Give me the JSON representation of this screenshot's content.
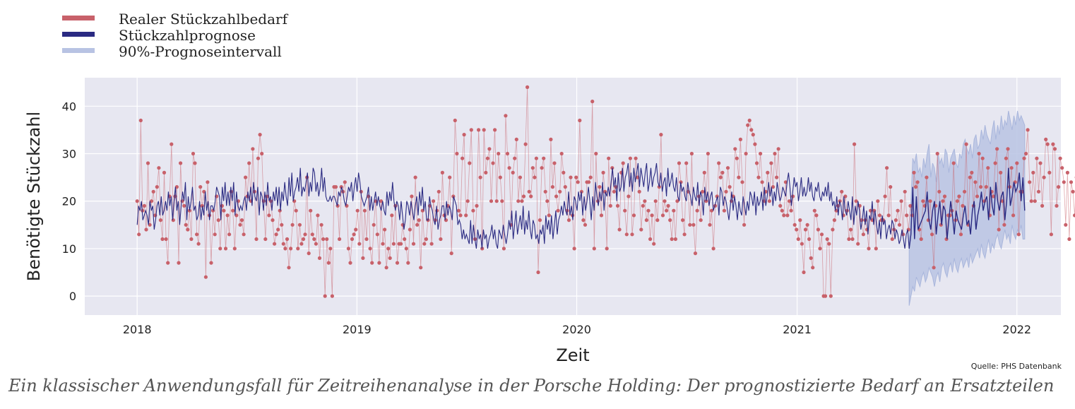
{
  "caption": "Ein klassischer Anwendungsfall für Zeitreihenanalyse in der Porsche Holding: Der prognostizierte Bedarf an Ersatzteilen",
  "source": "Quelle: PHS Datenbank",
  "colors": {
    "actual": "#c8616a",
    "forecast": "#2a2a82",
    "interval": "#b8c3e3",
    "plot_background": "#e7e7f1",
    "grid": "#ffffff"
  },
  "chart_data": {
    "type": "line",
    "title": "",
    "xlabel": "Zeit",
    "ylabel": "Benötigte Stückzahl",
    "x_range": [
      "2017-10-06",
      "2022-03-15"
    ],
    "ylim": [
      -4,
      46
    ],
    "x_ticks": [
      "2018",
      "2019",
      "2020",
      "2021",
      "2022"
    ],
    "y_ticks": [
      0,
      10,
      20,
      30,
      40
    ],
    "grid": true,
    "legend_position": "top-left",
    "legend": [
      {
        "label": "Realer Stückzahlbedarf",
        "series": "actual"
      },
      {
        "label": "Stückzahlprognose",
        "series": "forecast"
      },
      {
        "label": "90%-Prognoseintervall",
        "series": "interval"
      }
    ],
    "actual_period": {
      "start": "2018-01-01",
      "end": "2021-07-06",
      "step_days": 3
    },
    "forecast_period": {
      "start": "2021-07-06",
      "end": "2021-12-31",
      "step_days": 3
    },
    "actual_values": [
      20,
      13,
      37,
      18,
      19,
      14,
      28,
      15,
      20,
      22,
      17,
      23,
      27,
      16,
      12,
      26,
      12,
      7,
      21,
      32,
      16,
      21,
      23,
      7,
      28,
      20,
      19,
      15,
      14,
      18,
      12,
      30,
      28,
      13,
      11,
      23,
      19,
      22,
      4,
      24,
      17,
      7,
      18,
      13,
      21,
      16,
      10,
      19,
      18,
      10,
      17,
      13,
      22,
      18,
      10,
      17,
      20,
      15,
      16,
      13,
      25,
      21,
      28,
      20,
      31,
      22,
      12,
      29,
      34,
      30,
      20,
      12,
      21,
      17,
      20,
      16,
      11,
      13,
      14,
      18,
      15,
      11,
      10,
      12,
      6,
      10,
      15,
      20,
      18,
      10,
      15,
      11,
      12,
      13,
      25,
      9,
      18,
      13,
      12,
      11,
      17,
      8,
      15,
      12,
      0,
      12,
      7,
      10,
      0,
      23,
      23,
      19,
      12,
      23,
      22,
      24,
      19,
      10,
      7,
      12,
      13,
      14,
      18,
      11,
      22,
      8,
      18,
      12,
      21,
      10,
      7,
      15,
      20,
      13,
      7,
      20,
      11,
      14,
      6,
      10,
      8,
      17,
      11,
      19,
      7,
      11,
      11,
      15,
      12,
      10,
      7,
      14,
      21,
      11,
      25,
      15,
      16,
      6,
      18,
      11,
      12,
      16,
      19,
      11,
      20,
      16,
      18,
      22,
      12,
      26,
      17,
      16,
      19,
      25,
      9,
      21,
      37,
      30,
      18,
      17,
      29,
      34,
      17,
      20,
      28,
      35,
      18,
      12,
      19,
      35,
      25,
      10,
      35,
      26,
      29,
      31,
      20,
      28,
      35,
      20,
      30,
      25,
      20,
      10,
      38,
      30,
      27,
      15,
      26,
      29,
      33,
      20,
      25,
      20,
      21,
      32,
      44,
      22,
      21,
      27,
      25,
      29,
      5,
      16,
      27,
      29,
      22,
      20,
      17,
      33,
      23,
      28,
      21,
      18,
      22,
      30,
      26,
      23,
      18,
      16,
      25,
      17,
      10,
      25,
      24,
      37,
      22,
      16,
      15,
      24,
      24,
      25,
      41,
      10,
      30,
      20,
      23,
      17,
      26,
      22,
      10,
      29,
      19,
      27,
      22,
      23,
      19,
      14,
      26,
      28,
      18,
      13,
      21,
      29,
      13,
      17,
      29,
      25,
      22,
      14,
      19,
      20,
      16,
      18,
      12,
      17,
      11,
      20,
      16,
      23,
      34,
      17,
      20,
      18,
      19,
      16,
      12,
      18,
      12,
      20,
      28,
      24,
      16,
      13,
      28,
      22,
      15,
      30,
      15,
      9,
      18,
      21,
      16,
      22,
      26,
      20,
      30,
      15,
      18,
      10,
      19,
      21,
      28,
      25,
      26,
      18,
      22,
      27,
      23,
      20,
      21,
      31,
      29,
      25,
      33,
      24,
      15,
      30,
      36,
      37,
      35,
      34,
      32,
      28,
      25,
      30,
      24,
      20,
      22,
      26,
      20,
      28,
      23,
      30,
      25,
      31,
      19,
      18,
      17,
      24,
      17,
      20,
      18,
      21,
      15,
      14,
      12,
      16,
      11,
      5,
      14,
      15,
      12,
      8,
      6,
      18,
      17,
      14,
      10,
      13,
      0,
      0,
      12,
      11,
      0,
      14,
      16,
      18,
      19,
      20,
      22,
      17,
      21,
      18,
      12,
      14,
      12,
      32,
      20,
      11,
      19,
      16,
      13,
      16,
      14,
      10,
      18,
      16,
      18,
      10,
      20,
      17,
      16,
      16,
      21,
      27,
      17,
      23,
      12,
      14,
      16,
      18,
      15,
      20,
      13,
      22,
      17,
      14,
      19,
      17,
      26,
      23,
      24,
      14,
      12,
      20,
      19,
      25,
      16,
      20,
      13,
      6,
      19,
      30,
      22,
      15,
      20,
      21,
      12,
      17,
      17,
      18,
      28,
      16,
      20,
      21,
      13,
      19,
      22,
      32,
      15,
      25,
      26,
      19,
      24,
      21,
      30,
      23,
      29,
      20,
      23,
      27,
      17,
      22,
      21,
      28,
      31,
      14,
      26,
      20,
      15,
      29,
      31,
      23,
      27,
      17,
      24,
      28,
      13,
      22,
      22,
      29,
      30,
      35,
      24,
      20,
      26,
      20,
      29,
      22,
      28,
      19,
      25,
      33,
      32,
      26,
      13,
      32,
      31,
      19,
      23,
      29,
      27,
      24,
      15,
      26,
      12,
      24,
      22,
      17,
      25,
      27,
      22,
      18,
      23,
      21,
      26,
      18,
      26,
      27,
      13,
      19,
      25,
      22,
      19,
      15,
      16,
      12,
      20,
      35,
      30,
      25,
      27,
      18,
      20,
      14,
      12,
      22,
      13,
      10,
      11,
      18,
      20,
      23,
      22,
      15,
      20,
      30,
      24,
      28,
      19,
      13,
      14,
      13,
      21,
      12,
      17,
      24,
      15,
      11,
      24,
      18,
      19,
      22,
      20,
      26,
      21,
      14,
      12,
      21,
      10,
      15,
      15,
      20,
      16,
      22,
      22,
      17,
      22,
      25,
      11,
      21,
      10,
      9,
      24,
      18,
      14,
      15,
      8,
      22,
      19,
      20,
      16,
      12,
      13,
      10,
      15,
      23,
      18,
      15,
      20,
      10,
      11,
      19,
      15,
      22,
      15,
      20,
      28,
      16,
      13,
      20,
      20,
      33,
      12,
      13,
      35,
      24,
      13,
      11,
      17,
      18,
      7,
      19,
      20,
      15,
      15,
      27,
      30,
      16,
      22,
      14,
      13,
      20,
      24,
      17,
      21,
      17,
      24,
      28,
      19,
      22,
      11,
      23,
      25,
      14,
      19,
      17,
      16,
      23,
      26,
      20,
      24,
      14,
      28,
      28,
      21,
      26,
      13,
      26,
      23,
      20,
      29,
      17,
      20,
      21,
      30,
      19,
      22,
      18,
      20,
      24,
      13,
      19,
      26,
      17,
      20,
      14,
      22,
      16,
      12,
      12,
      13,
      18,
      22,
      20,
      14,
      15,
      13,
      16,
      11,
      10,
      12,
      15,
      13,
      16,
      15,
      12,
      15,
      13,
      14,
      15,
      12,
      15,
      13,
      10,
      11,
      12,
      14,
      15,
      10,
      15,
      16,
      7,
      15,
      0,
      9,
      3,
      0,
      5,
      31,
      13
    ],
    "forecast_values": [
      15,
      19,
      18,
      20,
      16,
      17,
      18,
      17,
      15,
      20,
      18,
      19,
      14,
      16,
      19,
      20,
      17,
      21,
      17,
      18,
      20,
      18,
      22,
      19,
      21,
      16,
      20,
      23,
      18,
      20,
      15,
      19,
      22,
      20,
      24,
      16,
      21,
      18,
      20,
      23,
      18,
      19,
      16,
      17,
      20,
      16,
      19,
      17,
      22,
      18,
      20,
      16,
      19,
      19,
      18,
      20,
      23,
      22,
      21,
      16,
      23,
      20,
      24,
      19,
      22,
      19,
      23,
      20,
      24,
      17,
      22,
      19,
      18,
      19,
      18,
      20,
      21,
      18,
      22,
      20,
      23,
      19,
      24,
      21,
      20,
      23,
      17,
      22,
      21,
      18,
      22,
      19,
      24,
      20,
      21,
      18,
      22,
      20,
      23,
      19,
      23,
      18,
      22,
      20,
      24,
      21,
      19,
      25,
      21,
      26,
      20,
      22,
      23,
      25,
      22,
      27,
      21,
      23,
      22,
      24,
      26,
      21,
      24,
      22,
      27,
      26,
      22,
      24,
      21,
      23,
      27,
      22,
      25,
      21,
      20,
      20,
      21,
      20,
      21,
      21,
      20,
      19,
      22,
      21,
      23,
      22,
      20,
      19,
      21,
      23,
      22,
      24,
      20,
      23,
      25,
      22,
      26,
      24,
      21,
      20,
      19,
      20,
      21,
      23,
      18,
      21,
      18,
      20,
      22,
      19,
      21,
      19,
      18,
      20,
      18,
      17,
      22,
      19,
      22,
      20,
      24,
      20,
      18,
      20,
      19,
      16,
      20,
      17,
      14,
      16,
      20,
      19,
      17,
      20,
      18,
      16,
      19,
      21,
      17,
      22,
      19,
      23,
      18,
      20,
      16,
      16,
      21,
      19,
      18,
      16,
      15,
      19,
      14,
      16,
      17,
      19,
      19,
      16,
      20,
      17,
      19,
      18,
      16,
      21,
      20,
      19,
      15,
      16,
      15,
      12,
      14,
      12,
      13,
      12,
      11,
      16,
      11,
      15,
      12,
      10,
      14,
      12,
      13,
      10,
      14,
      12,
      13,
      10,
      12,
      13,
      15,
      12,
      14,
      11,
      10,
      14,
      13,
      12,
      15,
      13,
      11,
      13,
      16,
      14,
      18,
      12,
      15,
      18,
      13,
      15,
      17,
      14,
      19,
      13,
      16,
      14,
      18,
      14,
      12,
      16,
      15,
      12,
      13,
      11,
      14,
      13,
      15,
      11,
      17,
      14,
      16,
      13,
      17,
      12,
      15,
      18,
      13,
      16,
      17,
      19,
      17,
      20,
      18,
      17,
      22,
      17,
      19,
      16,
      21,
      20,
      18,
      22,
      20,
      22,
      17,
      21,
      18,
      20,
      23,
      20,
      16,
      21,
      18,
      24,
      21,
      19,
      22,
      20,
      24,
      18,
      22,
      21,
      23,
      21,
      24,
      27,
      23,
      25,
      20,
      26,
      22,
      23,
      27,
      22,
      25,
      26,
      28,
      23,
      26,
      22,
      27,
      24,
      26,
      28,
      23,
      27,
      25,
      23,
      26,
      28,
      22,
      24,
      27,
      23,
      25,
      26,
      28,
      24,
      23,
      26,
      22,
      24,
      25,
      21,
      27,
      23,
      24,
      26,
      23,
      22,
      25,
      21,
      20,
      24,
      22,
      23,
      21,
      20,
      24,
      22,
      21,
      19,
      23,
      21,
      20,
      24,
      19,
      22,
      21,
      17,
      23,
      20,
      22,
      19,
      21,
      22,
      18,
      19,
      20,
      21,
      17,
      23,
      22,
      19,
      21,
      20,
      18,
      16,
      19,
      22,
      18,
      21,
      19,
      16,
      20,
      18,
      17,
      21,
      19,
      17,
      20,
      18,
      22,
      21,
      19,
      22,
      17,
      21,
      19,
      20,
      22,
      18,
      23,
      19,
      21,
      24,
      21,
      23,
      19,
      22,
      20,
      24,
      22,
      20,
      21,
      23,
      22,
      21,
      24,
      26,
      23,
      19,
      22,
      25,
      23,
      24,
      20,
      22,
      25,
      21,
      23,
      21,
      22,
      25,
      22,
      24,
      21,
      20,
      23,
      22,
      24,
      21,
      20,
      22,
      21,
      23,
      21,
      24,
      20,
      22,
      19,
      20,
      18,
      21,
      17,
      20,
      19,
      16,
      21,
      18,
      17,
      20,
      18,
      16,
      21,
      15,
      19,
      17,
      20,
      18,
      14,
      16,
      19,
      15,
      18,
      13,
      17,
      16,
      20,
      15,
      18,
      15,
      13,
      16,
      12,
      17,
      15,
      16,
      12,
      14,
      15,
      13,
      16,
      15,
      12,
      14,
      13,
      11,
      12,
      14,
      12,
      10,
      13,
      14,
      10
    ],
    "forecast_future_values": [
      10,
      13,
      23,
      12,
      21,
      14,
      15,
      16,
      17,
      18,
      22,
      16,
      14,
      18,
      20,
      13,
      17,
      20,
      15,
      19,
      18,
      12,
      16,
      20,
      17,
      13,
      18,
      16,
      15,
      14,
      17,
      19,
      15,
      16,
      13,
      18,
      20,
      14,
      17,
      19,
      22,
      18,
      20,
      21,
      16,
      23,
      19,
      17,
      24,
      20,
      18,
      21,
      22,
      16,
      20,
      27,
      19,
      21,
      24,
      22,
      23,
      26,
      20,
      25,
      18
    ],
    "interval_upper": [
      12,
      20,
      29,
      28,
      30,
      26,
      27,
      25,
      29,
      27,
      30,
      32,
      25,
      28,
      27,
      24,
      30,
      28,
      29,
      27,
      31,
      30,
      26,
      29,
      30,
      31,
      28,
      27,
      30,
      29,
      32,
      33,
      31,
      30,
      32,
      29,
      33,
      34,
      31,
      32,
      35,
      33,
      36,
      34,
      33,
      32,
      35,
      37,
      33,
      36,
      34,
      38,
      35,
      37,
      36,
      39,
      37,
      35,
      38,
      36,
      39,
      37,
      38,
      37,
      36
    ],
    "interval_lower": [
      -2,
      0,
      2,
      1,
      4,
      3,
      2,
      4,
      5,
      3,
      4,
      6,
      5,
      4,
      2,
      4,
      5,
      3,
      6,
      7,
      5,
      4,
      6,
      7,
      5,
      8,
      6,
      5,
      7,
      8,
      6,
      7,
      8,
      6,
      9,
      7,
      8,
      9,
      10,
      8,
      11,
      9,
      8,
      10,
      12,
      9,
      11,
      10,
      12,
      13,
      11,
      10,
      12,
      14,
      12,
      13,
      11,
      15,
      13,
      12,
      14,
      13,
      15,
      12,
      12
    ]
  }
}
